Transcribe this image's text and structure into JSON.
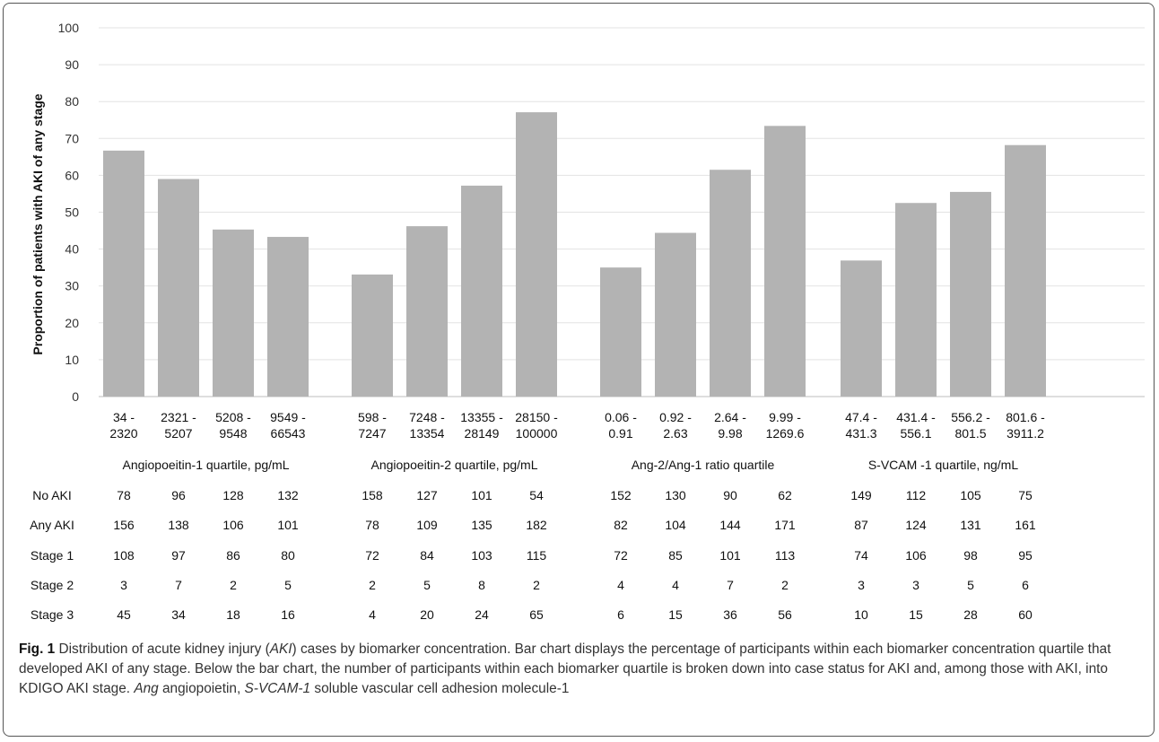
{
  "chart_data": {
    "type": "bar",
    "ylabel": "Proportion of patients with AKI of any stage",
    "ylim": [
      0,
      100
    ],
    "yticks": [
      0,
      10,
      20,
      30,
      40,
      50,
      60,
      70,
      80,
      90,
      100
    ],
    "grid": true,
    "bar_color": "#b3b3b3",
    "groups": [
      {
        "label": "Angiopoeitin-1 quartile, pg/mL",
        "categories": [
          [
            "34 -",
            "2320"
          ],
          [
            "2321 -",
            "5207"
          ],
          [
            "5208 -",
            "9548"
          ],
          [
            "9549 -",
            "66543"
          ]
        ],
        "values": [
          66.7,
          59.0,
          45.3,
          43.3
        ]
      },
      {
        "label": "Angiopoeitin-2 quartile, pg/mL",
        "categories": [
          [
            "598 -",
            "7247"
          ],
          [
            "7248 -",
            "13354"
          ],
          [
            "13355 -",
            "28149"
          ],
          [
            "28150 -",
            "100000"
          ]
        ],
        "values": [
          33.1,
          46.2,
          57.2,
          77.1
        ]
      },
      {
        "label": "Ang-2/Ang-1 ratio quartile",
        "categories": [
          [
            "0.06 -",
            "0.91"
          ],
          [
            "0.92 -",
            "2.63"
          ],
          [
            "2.64 -",
            "9.98"
          ],
          [
            "9.99 -",
            "1269.6"
          ]
        ],
        "values": [
          35.0,
          44.4,
          61.5,
          73.4
        ]
      },
      {
        "label": "S-VCAM -1 quartile, ng/mL",
        "categories": [
          [
            "47.4 -",
            "431.3"
          ],
          [
            "431.4 -",
            "556.1"
          ],
          [
            "556.2 -",
            "801.5"
          ],
          [
            "801.6 -",
            "3911.2"
          ]
        ],
        "values": [
          36.9,
          52.5,
          55.5,
          68.2
        ]
      }
    ],
    "table": {
      "row_labels": [
        "No AKI",
        "Any AKI",
        "Stage 1",
        "Stage 2",
        "Stage 3"
      ],
      "rows": [
        [
          "78",
          "96",
          "128",
          "132",
          "158",
          "127",
          "101",
          "54",
          "152",
          "130",
          "90",
          "62",
          "149",
          "112",
          "105",
          "75"
        ],
        [
          "156",
          "138",
          "106",
          "101",
          "78",
          "109",
          "135",
          "182",
          "82",
          "104",
          "144",
          "171",
          "87",
          "124",
          "131",
          "161"
        ],
        [
          "108",
          "97",
          "86",
          "80",
          "72",
          "84",
          "103",
          "115",
          "72",
          "85",
          "101",
          "113",
          "74",
          "106",
          "98",
          "95"
        ],
        [
          "3",
          "7",
          "2",
          "5",
          "2",
          "5",
          "8",
          "2",
          "4",
          "4",
          "7",
          "2",
          "3",
          "3",
          "5",
          "6"
        ],
        [
          "45",
          "34",
          "18",
          "16",
          "4",
          "20",
          "24",
          "65",
          "6",
          "15",
          "36",
          "56",
          "10",
          "15",
          "28",
          "60"
        ]
      ]
    }
  },
  "caption": {
    "label": "Fig. 1",
    "text1": " Distribution of acute kidney injury (",
    "abbr1": "AKI",
    "text2": ") cases by biomarker concentration. Bar chart displays the percentage of participants within each biomarker concentration quartile that developed AKI of any stage. Below the bar chart, the number of participants within each biomarker quartile is broken down into case status for AKI and, among those with AKI, into KDIGO AKI stage. ",
    "abbr2": "Ang",
    "text3": " angiopoietin, ",
    "abbr3": "S-VCAM-1",
    "text4": " soluble vascular cell adhesion molecule-1"
  }
}
